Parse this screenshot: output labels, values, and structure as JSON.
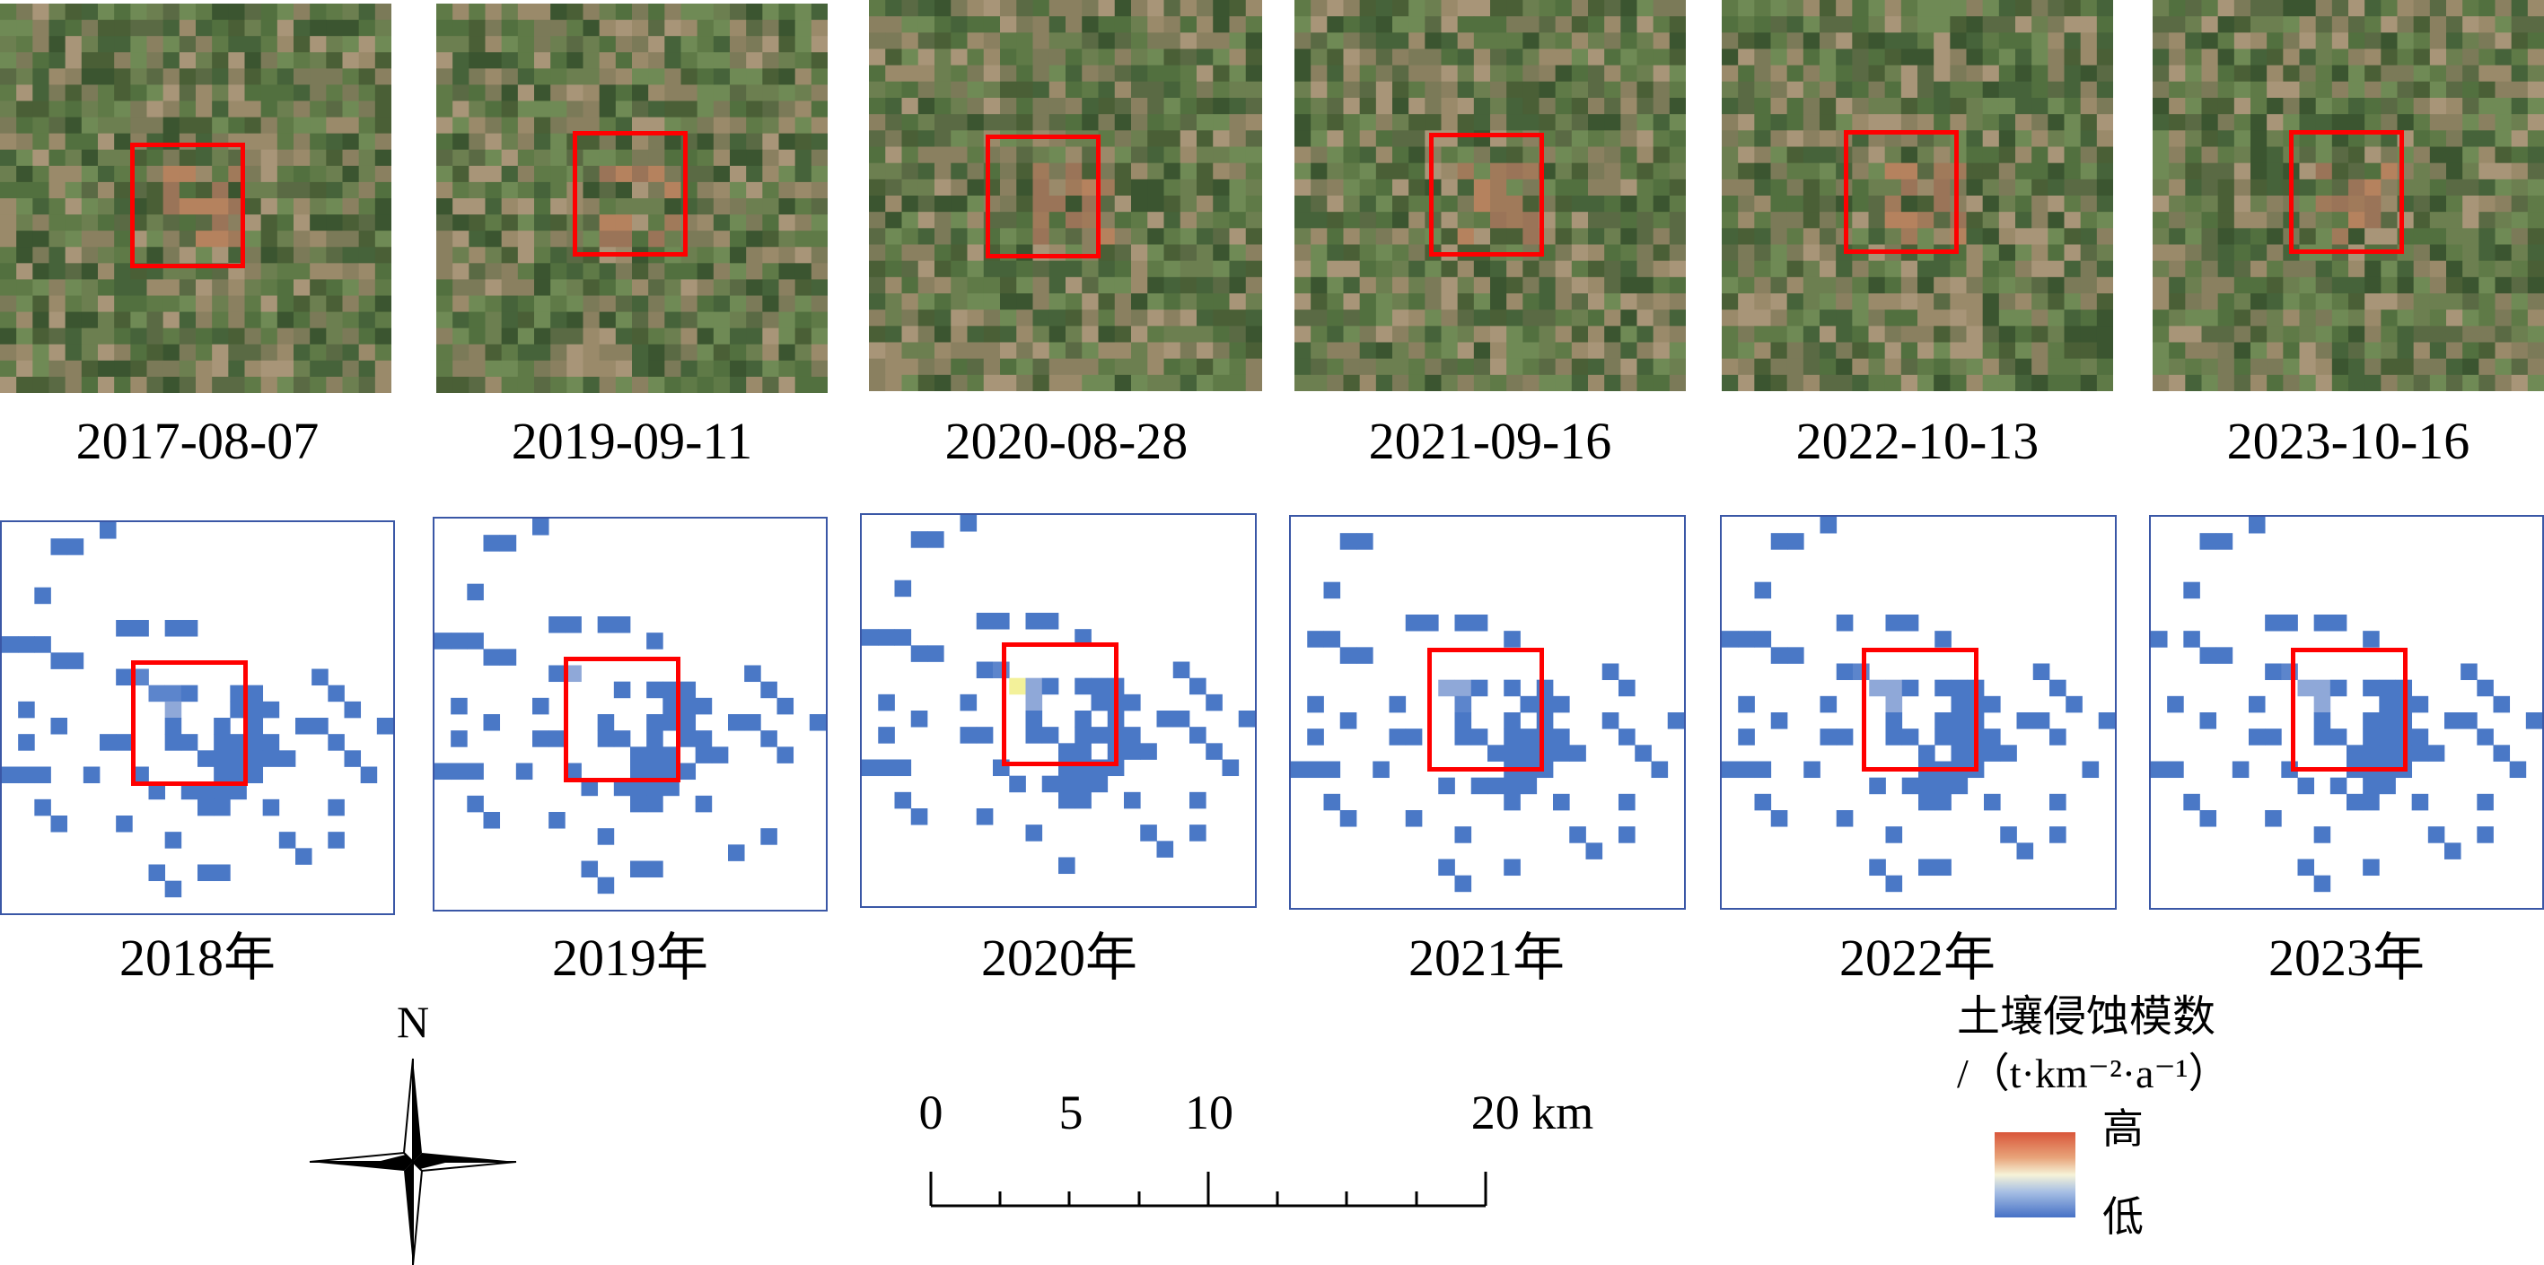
{
  "satellite_panels": [
    {
      "date": "2017-08-07"
    },
    {
      "date": "2019-09-11"
    },
    {
      "date": "2020-08-28"
    },
    {
      "date": "2021-09-16"
    },
    {
      "date": "2022-10-13"
    },
    {
      "date": "2023-10-16"
    }
  ],
  "erosion_panels": [
    {
      "year": "2018年"
    },
    {
      "year": "2019年"
    },
    {
      "year": "2020年"
    },
    {
      "year": "2021年"
    },
    {
      "year": "2022年"
    },
    {
      "year": "2023年"
    }
  ],
  "north_arrow": {
    "label": "N"
  },
  "scale_bar": {
    "ticks": [
      "0",
      "5",
      "10",
      "20 km"
    ],
    "tick_values_km": [
      0,
      5,
      10,
      20
    ]
  },
  "legend": {
    "title": "土壤侵蚀模数",
    "unit": "/（t·km⁻²·a⁻¹）",
    "high_label": "高",
    "low_label": "低",
    "ramp_colors": [
      "#d9563a",
      "#e8a47a",
      "#f6f3d8",
      "#a7bfe4",
      "#4671c6"
    ]
  },
  "colors": {
    "roi": "#ff0000",
    "erosion_fill": "#4a78c6",
    "frame": "#3a57a6"
  }
}
